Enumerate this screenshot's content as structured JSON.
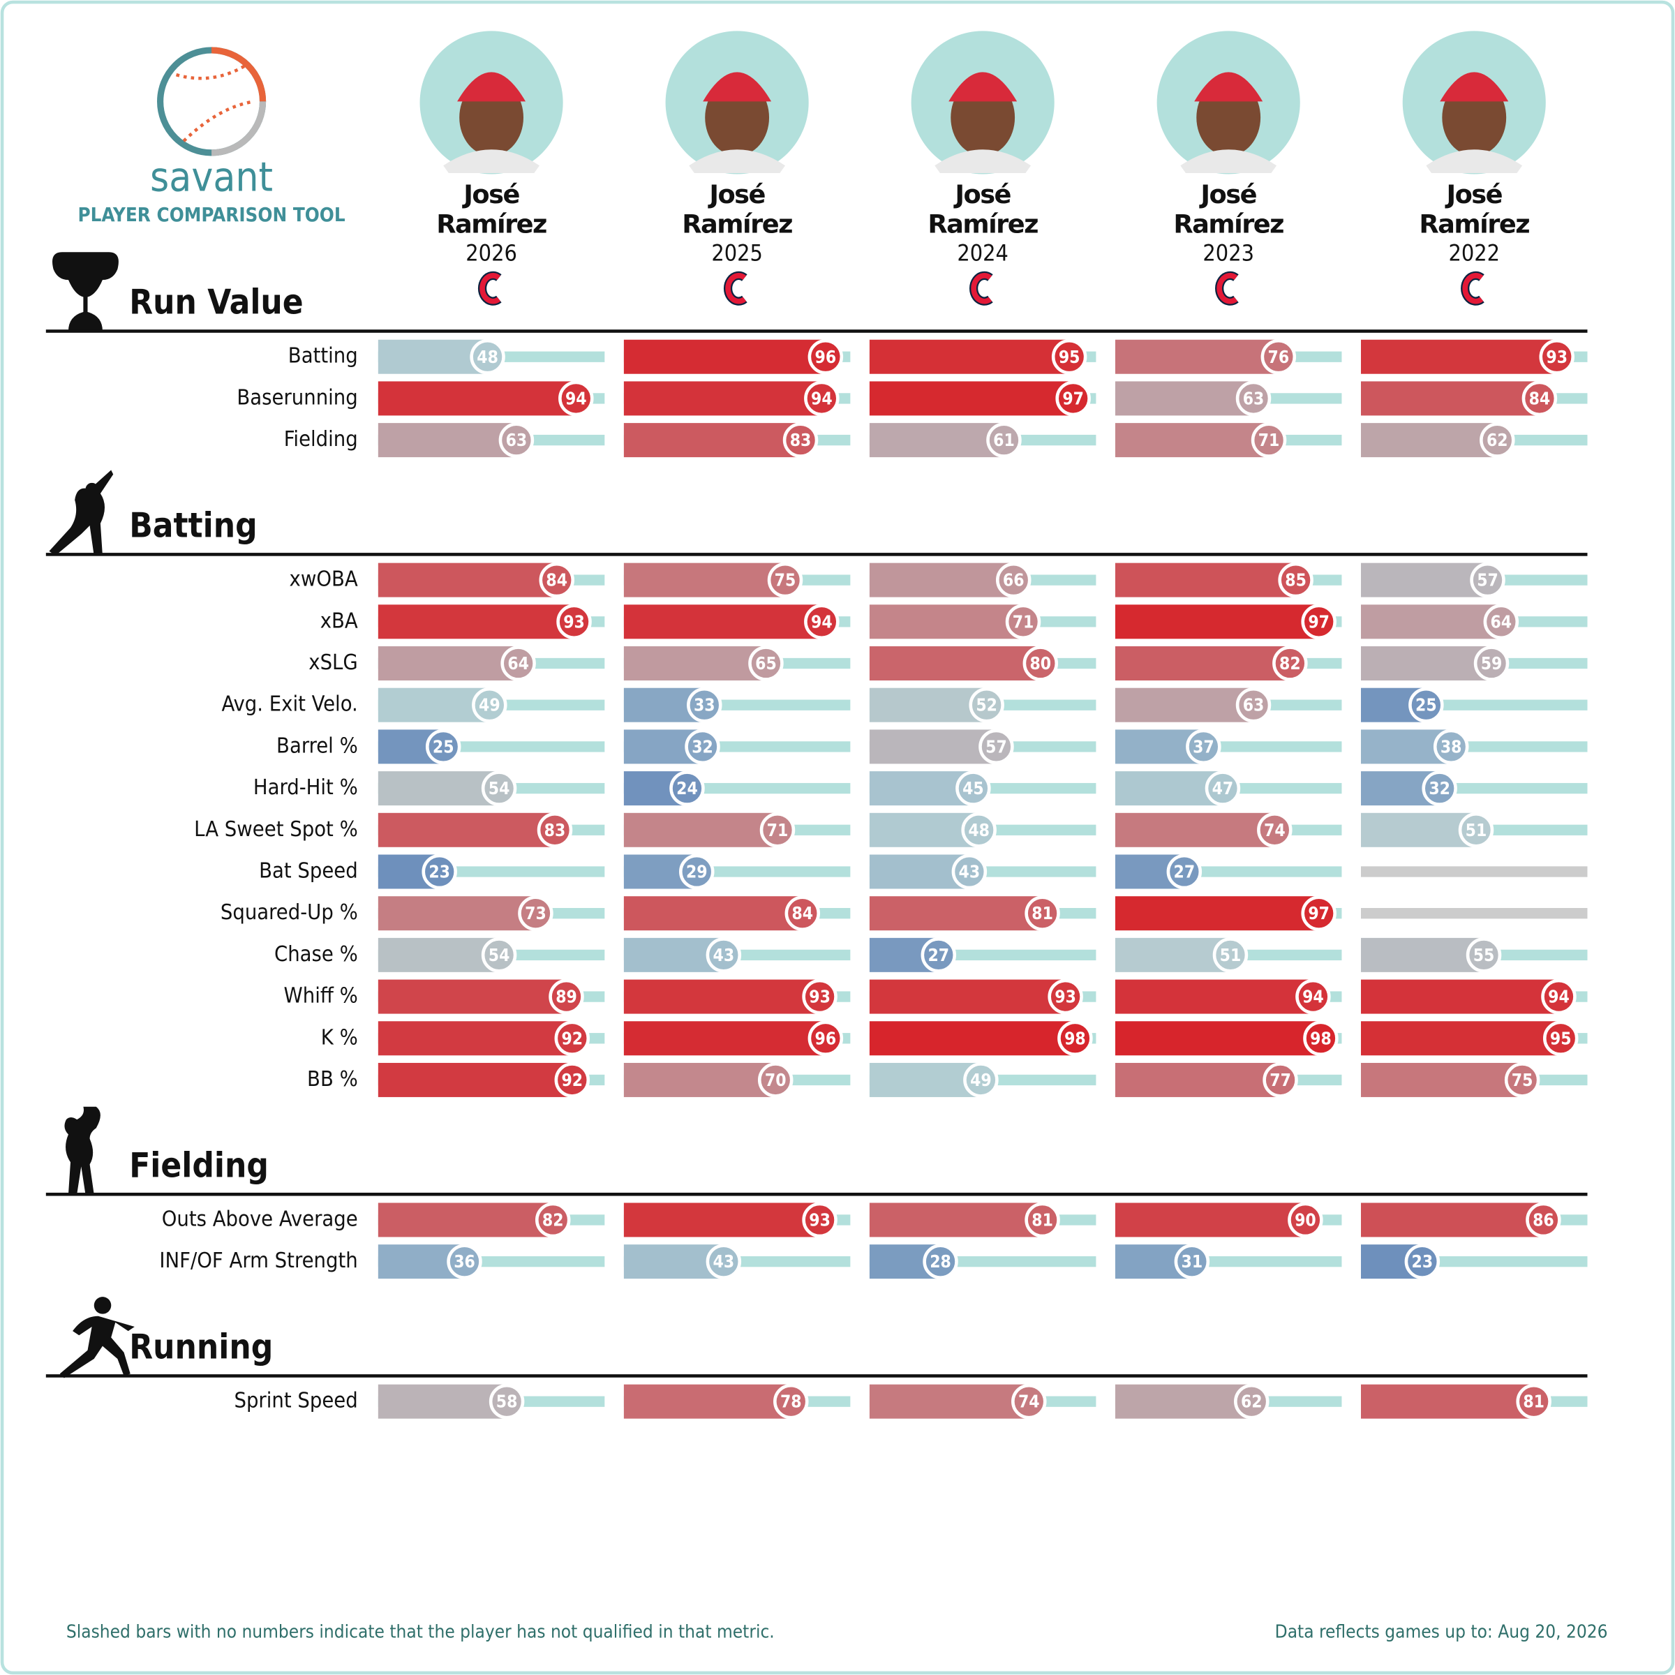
{
  "chart_data": {
    "type": "bar",
    "title": "savant",
    "subtitle": "PLAYER COMPARISON TOOL",
    "players": [
      {
        "name": "José Ramírez",
        "season": "2026"
      },
      {
        "name": "José Ramírez",
        "season": "2025"
      },
      {
        "name": "José Ramírez",
        "season": "2024"
      },
      {
        "name": "José Ramírez",
        "season": "2023"
      },
      {
        "name": "José Ramírez",
        "season": "2022"
      }
    ],
    "xlim": [
      0,
      100
    ],
    "sections": [
      {
        "title": "Run Value",
        "rows": [
          {
            "label": "Batting",
            "values": [
              48,
              96,
              95,
              76,
              93
            ]
          },
          {
            "label": "Baserunning",
            "values": [
              94,
              94,
              97,
              63,
              84
            ]
          },
          {
            "label": "Fielding",
            "values": [
              63,
              83,
              61,
              71,
              62
            ]
          }
        ]
      },
      {
        "title": "Batting",
        "rows": [
          {
            "label": "xwOBA",
            "values": [
              84,
              75,
              66,
              85,
              57
            ]
          },
          {
            "label": "xBA",
            "values": [
              93,
              94,
              71,
              97,
              64
            ]
          },
          {
            "label": "xSLG",
            "values": [
              64,
              65,
              80,
              82,
              59
            ]
          },
          {
            "label": "Avg. Exit Velo.",
            "values": [
              49,
              33,
              52,
              63,
              25
            ]
          },
          {
            "label": "Barrel %",
            "values": [
              25,
              32,
              57,
              37,
              38
            ]
          },
          {
            "label": "Hard-Hit %",
            "values": [
              54,
              24,
              45,
              47,
              32
            ]
          },
          {
            "label": "LA Sweet Spot %",
            "values": [
              83,
              71,
              48,
              74,
              51
            ]
          },
          {
            "label": "Bat Speed",
            "values": [
              23,
              29,
              43,
              27,
              null
            ]
          },
          {
            "label": "Squared-Up %",
            "values": [
              73,
              84,
              81,
              97,
              null
            ]
          },
          {
            "label": "Chase %",
            "values": [
              54,
              43,
              27,
              51,
              55
            ]
          },
          {
            "label": "Whiff %",
            "values": [
              89,
              93,
              93,
              94,
              94
            ]
          },
          {
            "label": "K %",
            "values": [
              92,
              96,
              98,
              98,
              95
            ]
          },
          {
            "label": "BB %",
            "values": [
              92,
              70,
              49,
              77,
              75
            ]
          }
        ]
      },
      {
        "title": "Fielding",
        "rows": [
          {
            "label": "Outs Above Average",
            "values": [
              82,
              93,
              81,
              90,
              86
            ]
          },
          {
            "label": "INF/OF Arm Strength",
            "values": [
              36,
              43,
              28,
              31,
              23
            ]
          }
        ]
      },
      {
        "title": "Running",
        "rows": [
          {
            "label": "Sprint Speed",
            "values": [
              58,
              78,
              74,
              62,
              81
            ]
          }
        ]
      }
    ],
    "note": "Slashed bars with no numbers indicate that the player has not qualified in that metric.",
    "updated": "Data reflects games up to: Aug 20, 2026"
  }
}
